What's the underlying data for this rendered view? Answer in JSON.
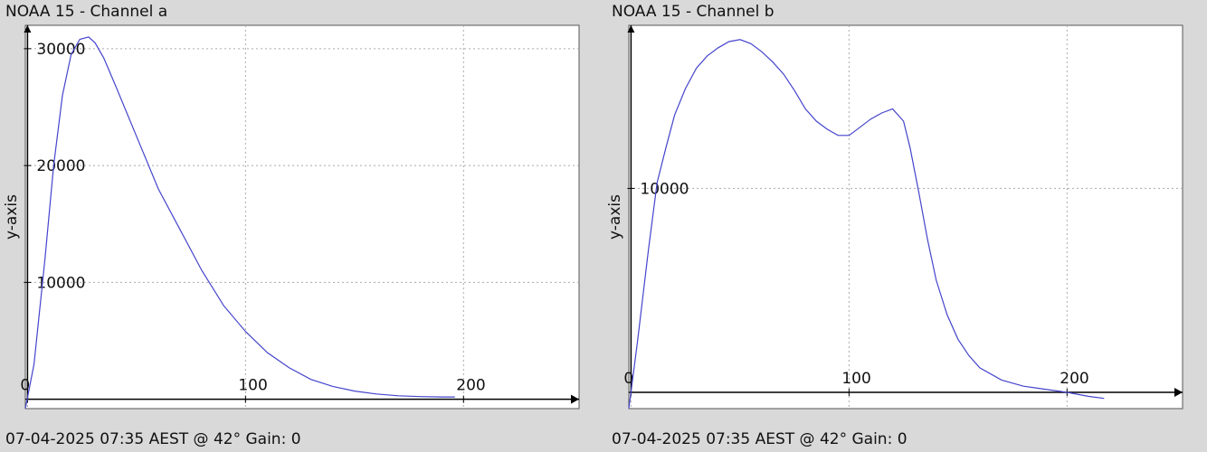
{
  "chart_data": [
    {
      "type": "line",
      "title": "NOAA 15 - Channel a",
      "footer": "07-04-2025 07:35 AEST @ 42° Gain: 0",
      "ylabel": "y-axis",
      "xlabel": "",
      "xlim": [
        -1,
        253
      ],
      "ylim": [
        -800,
        32000
      ],
      "xticks": [
        0,
        100,
        200
      ],
      "yticks": [
        10000,
        20000,
        30000
      ],
      "grid": true,
      "color": "#4444cc",
      "series": [
        {
          "x": [
            -1,
            3,
            8,
            12,
            16,
            20,
            24,
            28,
            31,
            35,
            40,
            50,
            60,
            70,
            80,
            90,
            100,
            110,
            120,
            130,
            140,
            150,
            160,
            170,
            180,
            190,
            196
          ],
          "y": [
            -800,
            3000,
            12000,
            20000,
            26000,
            29500,
            30800,
            31000,
            30500,
            29200,
            27000,
            22500,
            18000,
            14500,
            11000,
            8000,
            5800,
            4000,
            2700,
            1700,
            1100,
            700,
            450,
            300,
            230,
            200,
            200
          ]
        }
      ]
    },
    {
      "type": "line",
      "title": "NOAA 15 - Channel b",
      "footer": "07-04-2025 07:35 AEST @ 42° Gain: 0",
      "ylabel": "y-axis",
      "xlabel": "",
      "xlim": [
        -1,
        253
      ],
      "ylim": [
        -800,
        18000
      ],
      "xticks": [
        0,
        100,
        200
      ],
      "yticks": [
        10000
      ],
      "grid": true,
      "color": "#4444cc",
      "series": [
        {
          "x": [
            -1,
            3,
            8,
            12,
            16,
            20,
            25,
            30,
            35,
            40,
            45,
            50,
            55,
            60,
            65,
            70,
            75,
            80,
            85,
            90,
            95,
            100,
            105,
            110,
            115,
            120,
            125,
            128,
            132,
            136,
            140,
            145,
            150,
            155,
            160,
            170,
            180,
            190,
            200,
            210,
            217
          ],
          "y": [
            -800,
            2500,
            7000,
            10300,
            12000,
            13600,
            14900,
            15900,
            16500,
            16900,
            17200,
            17300,
            17100,
            16700,
            16200,
            15600,
            14800,
            13900,
            13300,
            12900,
            12600,
            12600,
            13000,
            13400,
            13700,
            13900,
            13300,
            12000,
            9800,
            7500,
            5500,
            3800,
            2600,
            1800,
            1200,
            600,
            300,
            150,
            0,
            -200,
            -300
          ]
        }
      ]
    }
  ]
}
